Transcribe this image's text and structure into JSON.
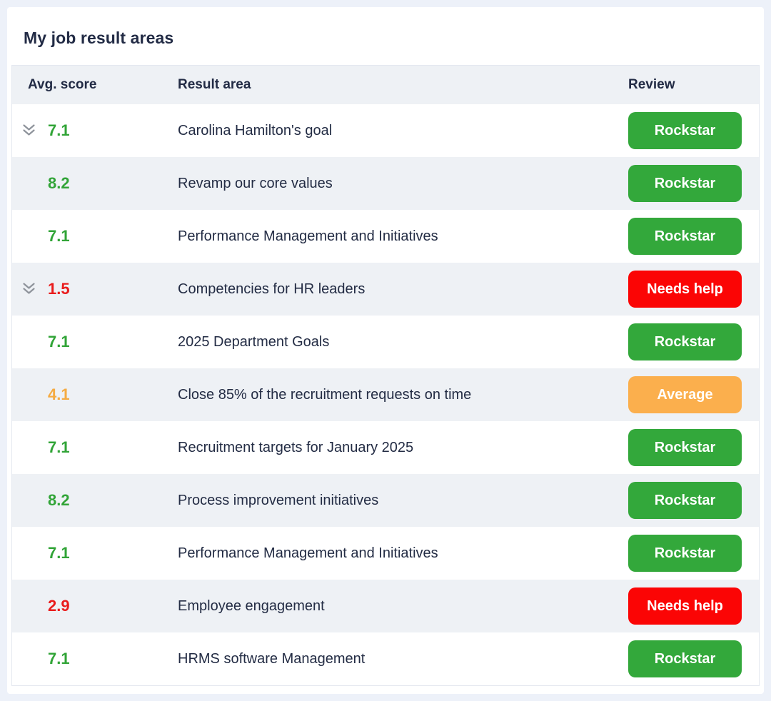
{
  "title": "My job result areas",
  "table": {
    "columns": [
      "Avg. score",
      "Result area",
      "Review"
    ],
    "rows": [
      {
        "score": "7.1",
        "score_color": "green",
        "area": "Carolina Hamilton's goal",
        "review": "Rockstar",
        "review_color": "green",
        "expandable": true
      },
      {
        "score": "8.2",
        "score_color": "green",
        "area": "Revamp our core values",
        "review": "Rockstar",
        "review_color": "green",
        "expandable": false
      },
      {
        "score": "7.1",
        "score_color": "green",
        "area": "Performance Management and Initiatives",
        "review": "Rockstar",
        "review_color": "green",
        "expandable": false
      },
      {
        "score": "1.5",
        "score_color": "red",
        "area": "Competencies for HR leaders",
        "review": "Needs help",
        "review_color": "red",
        "expandable": true
      },
      {
        "score": "7.1",
        "score_color": "green",
        "area": "2025 Department Goals",
        "review": "Rockstar",
        "review_color": "green",
        "expandable": false
      },
      {
        "score": "4.1",
        "score_color": "orange",
        "area": "Close 85% of the recruitment requests on time",
        "review": "Average",
        "review_color": "orange",
        "expandable": false
      },
      {
        "score": "7.1",
        "score_color": "green",
        "area": "Recruitment targets for January 2025",
        "review": "Rockstar",
        "review_color": "green",
        "expandable": false
      },
      {
        "score": "8.2",
        "score_color": "green",
        "area": "Process improvement initiatives",
        "review": "Rockstar",
        "review_color": "green",
        "expandable": false
      },
      {
        "score": "7.1",
        "score_color": "green",
        "area": "Performance Management and Initiatives",
        "review": "Rockstar",
        "review_color": "green",
        "expandable": false
      },
      {
        "score": "2.9",
        "score_color": "red",
        "area": "Employee engagement",
        "review": "Needs help",
        "review_color": "red",
        "expandable": false
      },
      {
        "score": "7.1",
        "score_color": "green",
        "area": "HRMS software Management",
        "review": "Rockstar",
        "review_color": "green",
        "expandable": false
      }
    ]
  },
  "icons": {
    "expand": "double-chevron-down-icon"
  },
  "colors": {
    "score": {
      "green": "#31a437",
      "red": "#e91c1c",
      "orange": "#f5ab43"
    },
    "badge": {
      "green": "#33a83b",
      "red": "#fb0505",
      "orange": "#fbaf4d"
    },
    "chevron": "#8e939b",
    "heading_text": "#222b45",
    "row_text": "#232c44",
    "row_alt_bg": "#eef1f5",
    "header_bg": "#eef1f5",
    "table_border": "#e4e8f0",
    "page_bg": "#edf1f9",
    "card_bg": "#ffffff"
  }
}
